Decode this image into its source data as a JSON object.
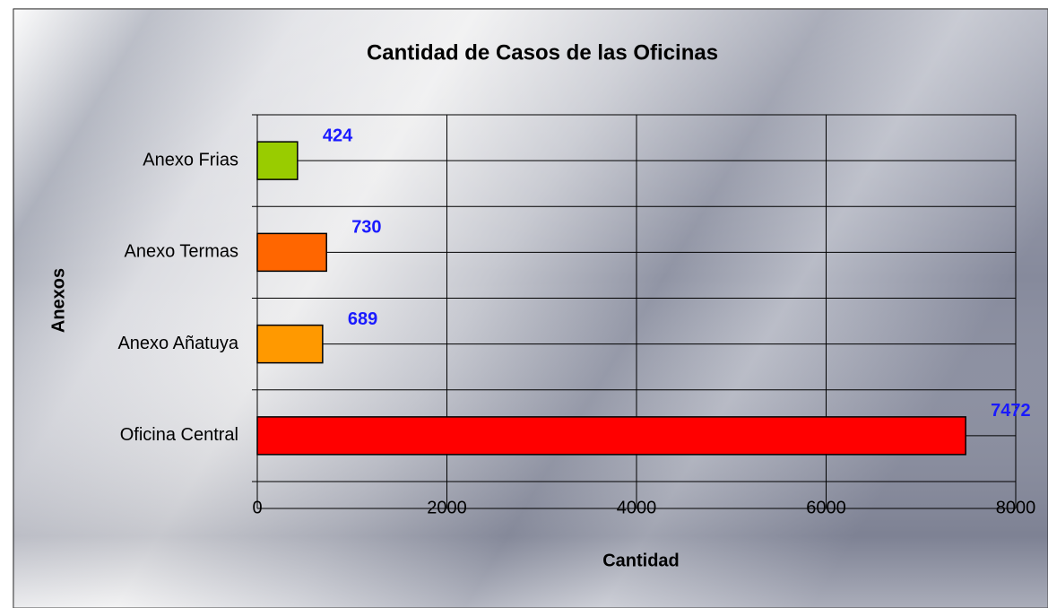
{
  "chart_data": {
    "type": "hbar",
    "title": "Cantidad de Casos de las Oficinas",
    "x_label": "Cantidad",
    "y_label": "Anexos",
    "categories": [
      "Oficina Central",
      "Anexo Añatuya",
      "Anexo Termas",
      "Anexo Frias"
    ],
    "values": [
      7472,
      689,
      730,
      424
    ],
    "colors": [
      "#ff0000",
      "#ff9900",
      "#ff6600",
      "#99cc00"
    ],
    "label_color": "#1a1aff",
    "xlim": [
      0,
      8000
    ],
    "xticks": [
      0,
      2000,
      4000,
      6000,
      8000
    ],
    "grid": true
  }
}
